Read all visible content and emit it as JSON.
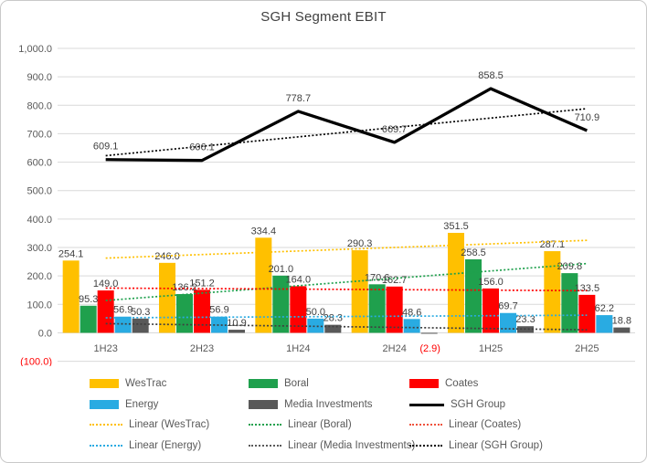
{
  "chart_data": {
    "type": "bar",
    "subtype": "combo-bar-line-with-linear-trendlines",
    "title": "SGH Segment EBIT",
    "categories": [
      "1H23",
      "2H23",
      "1H24",
      "2H24",
      "1H25",
      "2H25"
    ],
    "series": [
      {
        "name": "WesTrac",
        "type": "bar",
        "color": "#FFC000",
        "values": [
          254.1,
          246.0,
          334.4,
          290.3,
          351.5,
          287.1
        ]
      },
      {
        "name": "Boral",
        "type": "bar",
        "color": "#1FA04D",
        "values": [
          95.3,
          136.2,
          201.0,
          170.6,
          258.5,
          209.8
        ]
      },
      {
        "name": "Coates",
        "type": "bar",
        "color": "#FF0000",
        "values": [
          149.0,
          151.2,
          164.0,
          162.7,
          156.0,
          133.5
        ]
      },
      {
        "name": "Energy",
        "type": "bar",
        "color": "#29ABE2",
        "values": [
          56.9,
          56.9,
          50.0,
          48.6,
          69.7,
          62.2
        ]
      },
      {
        "name": "Media Investments",
        "type": "bar",
        "color": "#595959",
        "values": [
          50.3,
          10.9,
          28.3,
          -2.9,
          23.3,
          18.8
        ]
      },
      {
        "name": "SGH Group",
        "type": "line",
        "color": "#000000",
        "values": [
          609.1,
          606.1,
          778.7,
          669.7,
          858.5,
          710.9
        ]
      }
    ],
    "trendlines_shown": [
      "Linear (WesTrac)",
      "Linear (Boral)",
      "Linear (Coates)",
      "Linear (Energy)",
      "Linear (Media Investments)",
      "Linear (SGH Group)"
    ],
    "y_axis": {
      "min": -100,
      "max": 1000,
      "step": 100,
      "tick_labels": [
        "1,000.0",
        "900.0",
        "800.0",
        "700.0",
        "600.0",
        "500.0",
        "400.0",
        "300.0",
        "200.0",
        "100.0",
        "0.0",
        "(100.0)"
      ]
    },
    "grid": "horizontal",
    "grid_color": "#D9D9D9",
    "axis_text_color": "#595959",
    "label_color": "#404040",
    "negative_color": "#FF0000",
    "legend_position": "bottom"
  },
  "legend": {
    "items": [
      {
        "label": "WesTrac",
        "swatch": "bar",
        "color": "#FFC000"
      },
      {
        "label": "Boral",
        "swatch": "bar",
        "color": "#1FA04D"
      },
      {
        "label": "Coates",
        "swatch": "bar",
        "color": "#FF0000"
      },
      {
        "label": "Energy",
        "swatch": "bar",
        "color": "#29ABE2"
      },
      {
        "label": "Media Investments",
        "swatch": "bar",
        "color": "#595959"
      },
      {
        "label": "SGH Group",
        "swatch": "line",
        "color": "#000000"
      },
      {
        "label": "Linear (WesTrac)",
        "swatch": "dotted",
        "color": "#FFC000"
      },
      {
        "label": "Linear (Boral)",
        "swatch": "dotted",
        "color": "#1FA04D"
      },
      {
        "label": "Linear (Coates)",
        "swatch": "dotted",
        "color": "#F0523C"
      },
      {
        "label": "Linear (Energy)",
        "swatch": "dotted",
        "color": "#29ABE2"
      },
      {
        "label": "Linear (Media Investments)",
        "swatch": "dotted",
        "color": "#595959"
      },
      {
        "label": "Linear (SGH Group)",
        "swatch": "dotted",
        "color": "#000000"
      }
    ]
  }
}
